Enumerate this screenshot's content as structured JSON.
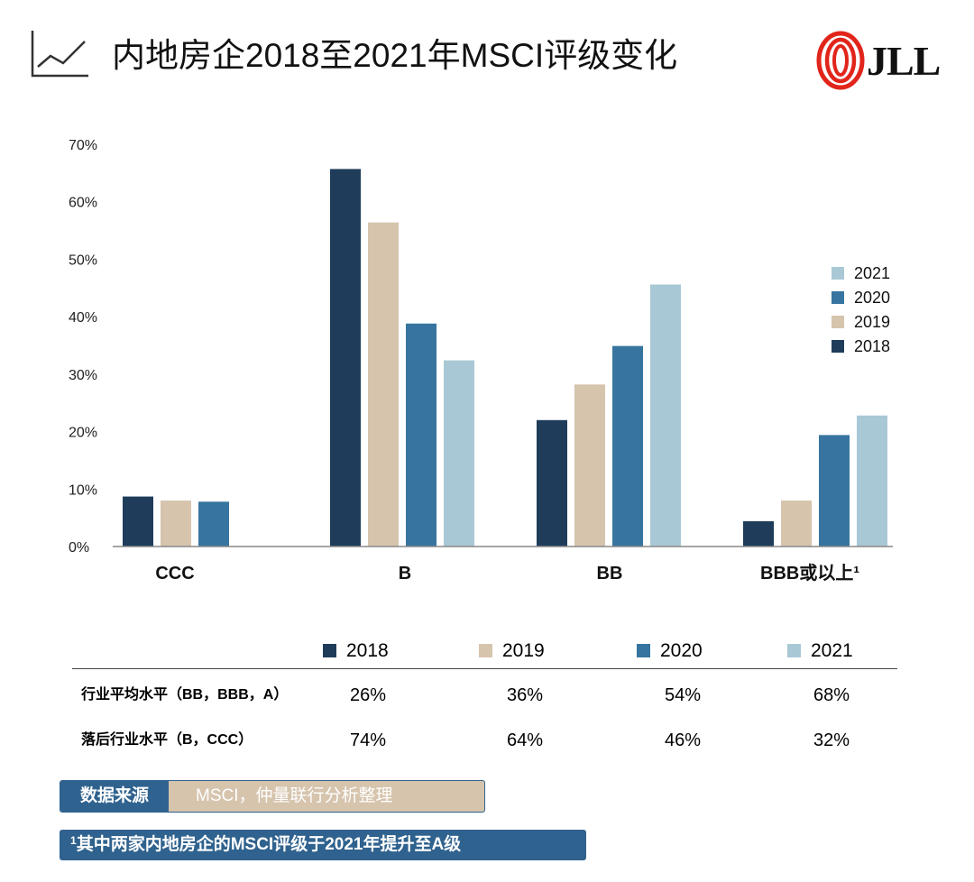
{
  "header": {
    "title": "内地房企2018至2021年MSCI评级变化",
    "logo_text": "JLL"
  },
  "chart_data": {
    "type": "bar",
    "title": "内地房企2018至2021年MSCI评级变化",
    "categories": [
      "CCC",
      "B",
      "BB",
      "BBB或以上¹"
    ],
    "series": [
      {
        "name": "2018",
        "values": [
          8.7,
          65.7,
          22.0,
          4.4
        ]
      },
      {
        "name": "2019",
        "values": [
          8.0,
          56.4,
          28.2,
          8.0
        ]
      },
      {
        "name": "2020",
        "values": [
          7.8,
          38.8,
          34.9,
          19.4
        ]
      },
      {
        "name": "2021",
        "values": [
          null,
          32.4,
          45.6,
          22.8
        ]
      }
    ],
    "ylim": [
      0,
      70
    ],
    "yticks": [
      0,
      10,
      20,
      30,
      40,
      50,
      60,
      70
    ],
    "ytick_labels": [
      "0%",
      "10%",
      "20%",
      "30%",
      "40%",
      "50%",
      "60%",
      "70%"
    ],
    "xlabel": "",
    "ylabel": "",
    "legend_placement": "right",
    "legend_order": [
      "2021",
      "2020",
      "2019",
      "2018"
    ],
    "colors": {
      "2018": "#1f3d5a",
      "2019": "#d6c4ad",
      "2020": "#3775a0",
      "2021": "#a9c8d5"
    },
    "grid": false
  },
  "table": {
    "legend": [
      {
        "name": "2018",
        "color": "#1f3d5a"
      },
      {
        "name": "2019",
        "color": "#d6c4ad"
      },
      {
        "name": "2020",
        "color": "#3775a0"
      },
      {
        "name": "2021",
        "color": "#a9c8d5"
      }
    ],
    "rows": [
      {
        "label": "行业平均水平（BB，BBB，A）",
        "values": [
          "26%",
          "36%",
          "54%",
          "68%"
        ]
      },
      {
        "label": "落后行业水平（B，CCC）",
        "values": [
          "74%",
          "64%",
          "46%",
          "32%"
        ]
      }
    ]
  },
  "source": {
    "label": "数据来源",
    "text": "MSCI，仲量联行分析整理"
  },
  "footnote": {
    "marker": "1",
    "text": "其中两家内地房企的MSCI评级于2021年提升至A级"
  }
}
